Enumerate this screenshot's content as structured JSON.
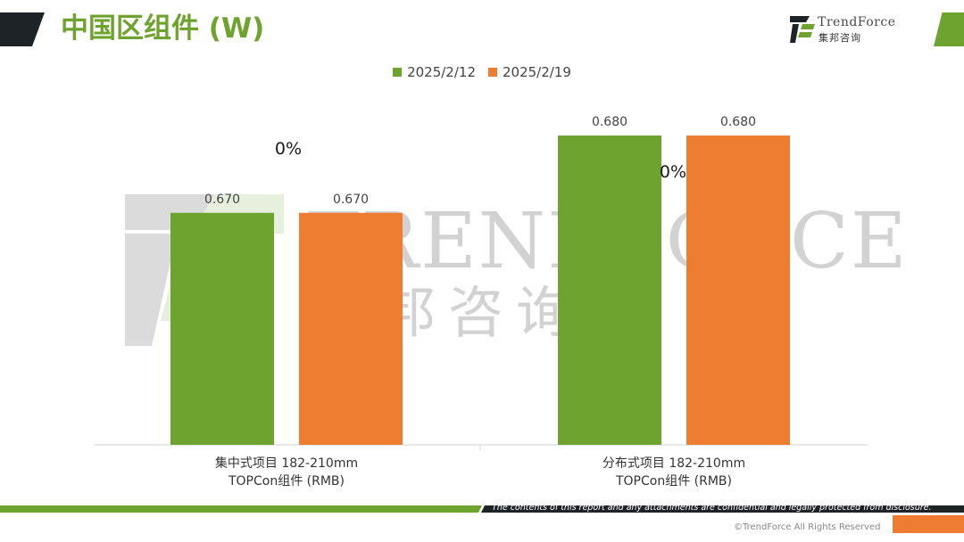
{
  "header": {
    "title": "中国区组件 (W)",
    "logo_text": "TrendForce",
    "logo_sub": "集邦咨询"
  },
  "watermark": {
    "text": "TRENDFORCE",
    "sub": "集邦咨询"
  },
  "footer": {
    "note": "The contents of this report and any attachments are confidential and legally protected from disclosure.",
    "copyright": "©TrendForce All Rights Reserved"
  },
  "colors": {
    "green": "#6fa32f",
    "orange": "#ee7d31",
    "dark": "#1e2328"
  },
  "chart_data": {
    "type": "bar",
    "categories": [
      [
        "集中式项目 182-210mm",
        "TOPCon组件 (RMB)"
      ],
      [
        "分布式项目 182-210mm",
        "TOPCon组件 (RMB)"
      ]
    ],
    "series": [
      {
        "name": "2025/2/12",
        "values": [
          0.67,
          0.68
        ],
        "color": "#6fa32f"
      },
      {
        "name": "2025/2/19",
        "values": [
          0.67,
          0.68
        ],
        "color": "#ee7d31"
      }
    ],
    "data_labels": [
      [
        "0.670",
        "0.670"
      ],
      [
        "0.680",
        "0.680"
      ]
    ],
    "change_labels": [
      "0%",
      "0%"
    ],
    "title": "",
    "xlabel": "",
    "ylabel": "",
    "ylim": [
      0.64,
      0.69
    ],
    "grid": false,
    "legend": "top-center"
  }
}
